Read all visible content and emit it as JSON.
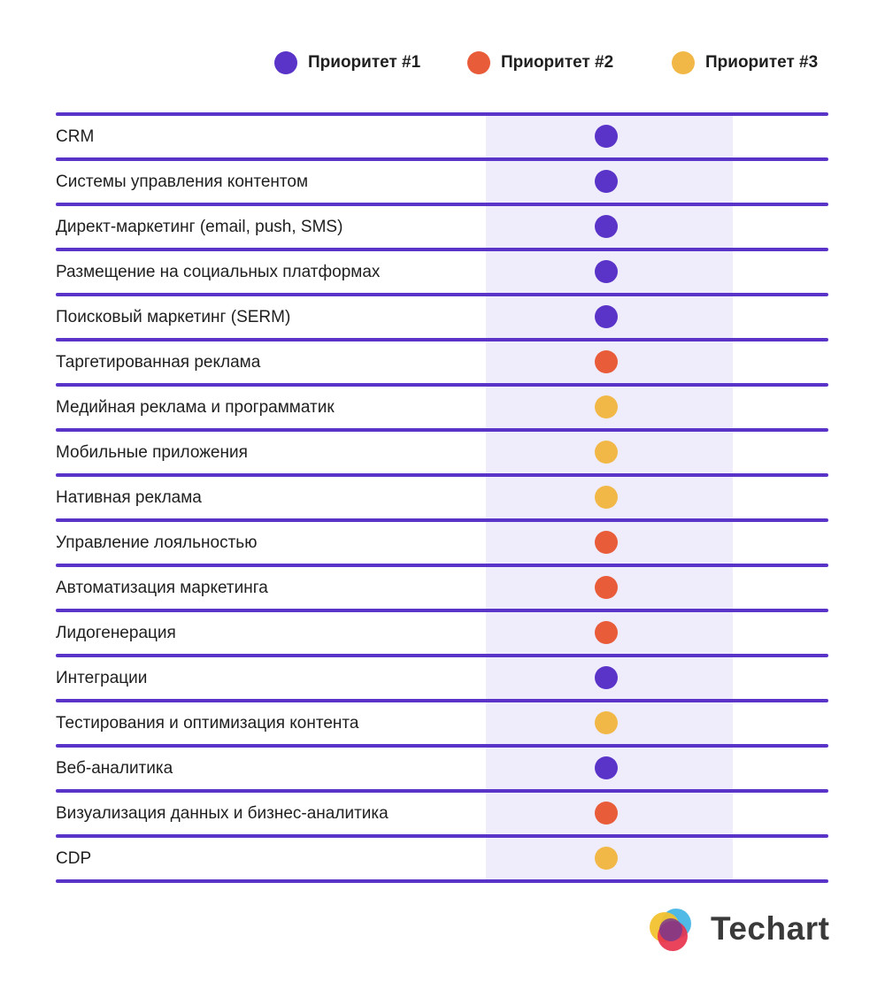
{
  "colors": {
    "priority_1": "#5a34c8",
    "priority_2": "#e85c3a",
    "priority_3": "#f2b847",
    "rule": "#5a34c8",
    "column_shade": "#efecfb"
  },
  "legend": {
    "items": [
      {
        "key": "priority_1",
        "label": "Приоритет #1"
      },
      {
        "key": "priority_2",
        "label": "Приоритет #2"
      },
      {
        "key": "priority_3",
        "label": "Приоритет #3"
      }
    ]
  },
  "rows": [
    {
      "label": "CRM",
      "priority": 1
    },
    {
      "label": "Системы управления контентом",
      "priority": 1
    },
    {
      "label": "Директ-маркетинг (email, push, SMS)",
      "priority": 1
    },
    {
      "label": "Размещение на социальных платформах",
      "priority": 1
    },
    {
      "label": "Поисковый маркетинг (SERM)",
      "priority": 1
    },
    {
      "label": "Таргетированная реклама",
      "priority": 2
    },
    {
      "label": "Медийная реклама и программатик",
      "priority": 3
    },
    {
      "label": "Мобильные приложения",
      "priority": 3
    },
    {
      "label": "Нативная реклама",
      "priority": 3
    },
    {
      "label": "Управление лояльностью",
      "priority": 2
    },
    {
      "label": "Автоматизация маркетинга",
      "priority": 2
    },
    {
      "label": "Лидогенерация",
      "priority": 2
    },
    {
      "label": "Интеграции",
      "priority": 1
    },
    {
      "label": "Тестирования и оптимизация контента",
      "priority": 3
    },
    {
      "label": "Веб-аналитика",
      "priority": 1
    },
    {
      "label": "Визуализация данных и бизнес-аналитика",
      "priority": 2
    },
    {
      "label": "CDP",
      "priority": 3
    }
  ],
  "logo": {
    "text": "Techart",
    "icon": "techart-logo-icon"
  }
}
